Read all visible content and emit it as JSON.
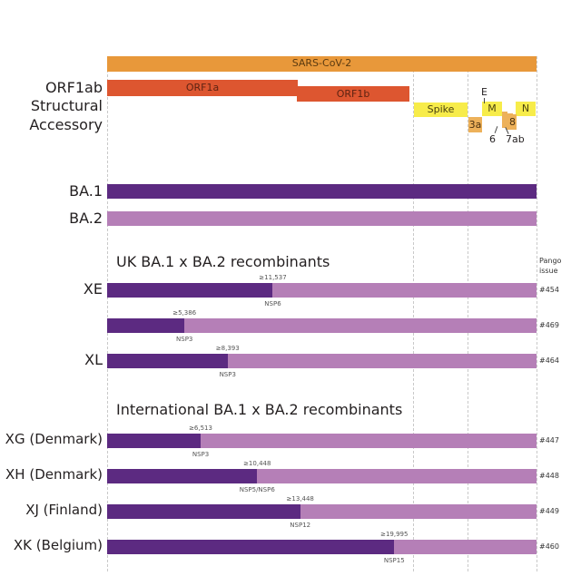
{
  "genome": {
    "label": "SARS-CoV-2",
    "length_nt": 29903,
    "colors": {
      "genome": "#e8983a",
      "orf1": "#dd5630",
      "structural": "#f7ec4a",
      "accessory": "#edb15a"
    }
  },
  "row_labels": {
    "orf1ab": "ORF1ab",
    "structural": "Structural",
    "accessory": "Accessory"
  },
  "genes": {
    "orf1a": "ORF1a",
    "orf1b": "ORF1b",
    "spike": "Spike",
    "e": "E",
    "m": "M",
    "n": "N",
    "g3a": "3a",
    "g6": "6",
    "g7ab": "7ab",
    "g8": "8"
  },
  "lineages": {
    "ba1": {
      "label": "BA.1",
      "color": "#5c2a81"
    },
    "ba2": {
      "label": "BA.2",
      "color": "#b57fb7"
    }
  },
  "sections": {
    "uk": "UK BA.1 x BA.2 recombinants",
    "international": "International BA.1 x BA.2 recombinants",
    "pango_header_1": "Pango",
    "pango_header_2": "issue"
  },
  "recombinants": [
    {
      "label": "XE",
      "breakpoint": 11537,
      "breakpoint_label": "≥11,537",
      "gene": "NSP6",
      "issue": "#454"
    },
    {
      "label": "",
      "breakpoint": 5386,
      "breakpoint_label": "≥5,386",
      "gene": "NSP3",
      "issue": "#469"
    },
    {
      "label": "XL",
      "breakpoint": 8393,
      "breakpoint_label": "≥8,393",
      "gene": "NSP3",
      "issue": "#464"
    },
    {
      "label": "XG (Denmark)",
      "breakpoint": 6513,
      "breakpoint_label": "≥6,513",
      "gene": "NSP3",
      "issue": "#447"
    },
    {
      "label": "XH (Denmark)",
      "breakpoint": 10448,
      "breakpoint_label": "≥10,448",
      "gene": "NSP5/NSP6",
      "issue": "#448"
    },
    {
      "label": "XJ (Finland)",
      "breakpoint": 13448,
      "breakpoint_label": "≥13,448",
      "gene": "NSP12",
      "issue": "#449"
    },
    {
      "label": "XK (Belgium)",
      "breakpoint": 19995,
      "breakpoint_label": "≥19,995",
      "gene": "NSP15",
      "issue": "#460"
    }
  ]
}
